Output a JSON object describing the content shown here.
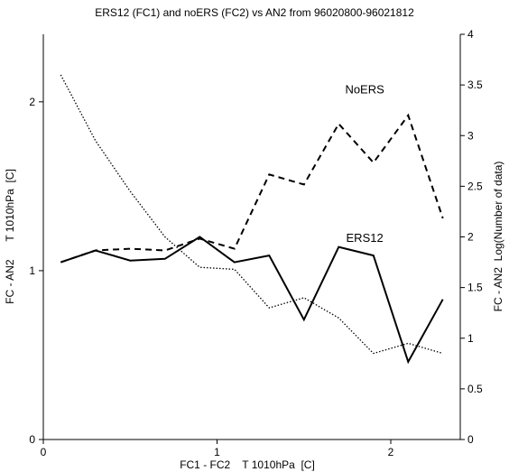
{
  "chart_data": {
    "type": "line",
    "title": "ERS12 (FC1) and noERS (FC2) vs AN2 from 96020800-96021812",
    "xlabel": "FC1 - FC2    T 1010hPa  [C]",
    "ylabel_left": "FC - AN2      T 1010hPa  [C]",
    "ylabel_right": "FC - AN2  Log(Number of data)",
    "xlim": [
      0,
      2.4
    ],
    "ylim_left": [
      0,
      2.4
    ],
    "ylim_right": [
      0,
      4
    ],
    "x_ticks": [
      "0",
      "1",
      "2"
    ],
    "y_ticks_left": [
      "0",
      "1",
      "2"
    ],
    "y_ticks_right": [
      "0",
      "0.5",
      "1",
      "1.5",
      "2",
      "2.5",
      "3",
      "3.5",
      "4"
    ],
    "grid": false,
    "series": [
      {
        "name": "NoERS",
        "axis": "left",
        "style": "dashed",
        "x": [
          0.1,
          0.3,
          0.5,
          0.7,
          0.9,
          1.1,
          1.3,
          1.5,
          1.7,
          1.9,
          2.1,
          2.3
        ],
        "y": [
          1.05,
          1.12,
          1.13,
          1.12,
          1.19,
          1.13,
          1.57,
          1.51,
          1.87,
          1.64,
          1.92,
          1.31
        ]
      },
      {
        "name": "ERS12",
        "axis": "left",
        "style": "solid",
        "x": [
          0.1,
          0.3,
          0.5,
          0.7,
          0.9,
          1.1,
          1.3,
          1.5,
          1.7,
          1.9,
          2.1,
          2.3
        ],
        "y": [
          1.05,
          1.12,
          1.06,
          1.07,
          1.2,
          1.05,
          1.09,
          0.71,
          1.14,
          1.09,
          0.46,
          0.83
        ]
      },
      {
        "axis": "right",
        "style": "dotted",
        "x": [
          0.1,
          0.3,
          0.5,
          0.7,
          0.9,
          1.1,
          1.3,
          1.5,
          1.7,
          1.9,
          2.1,
          2.3
        ],
        "y": [
          3.6,
          2.95,
          2.45,
          2.0,
          1.7,
          1.68,
          1.3,
          1.4,
          1.2,
          0.85,
          0.95,
          0.85
        ]
      }
    ],
    "annotations": [
      {
        "text": "NoERS",
        "x": 1.85,
        "y": 2.05
      },
      {
        "text": "ERS12",
        "x": 1.85,
        "y": 1.17
      }
    ]
  }
}
